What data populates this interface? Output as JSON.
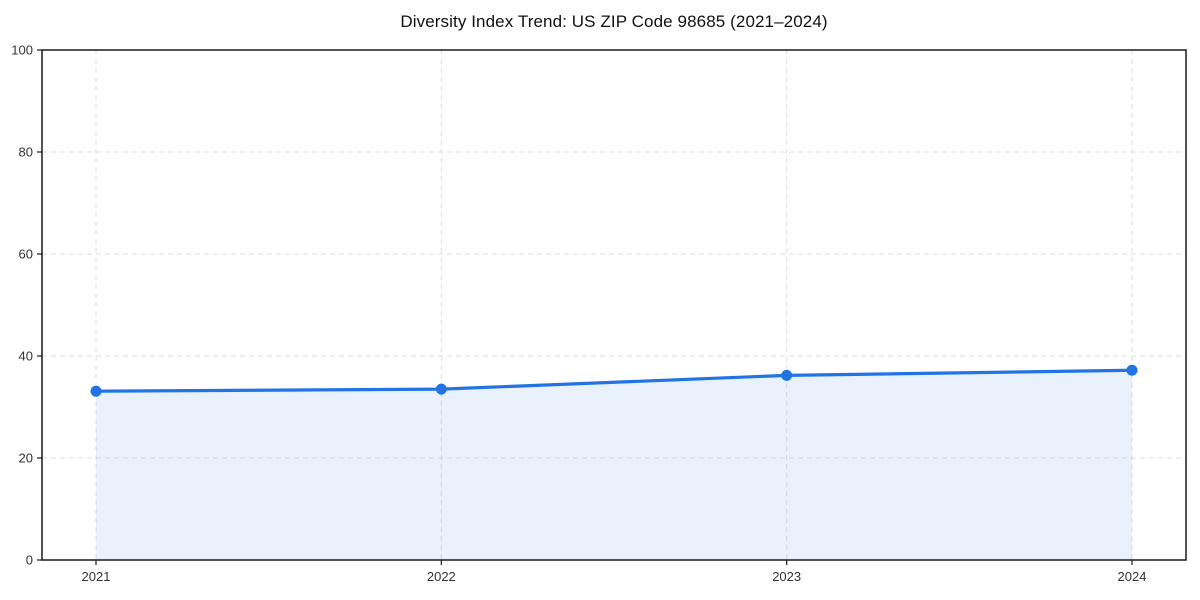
{
  "chart_data": {
    "type": "area",
    "title": "Diversity Index Trend: US ZIP Code 98685 (2021–2024)",
    "categories": [
      "2021",
      "2022",
      "2023",
      "2024"
    ],
    "series": [
      {
        "name": "Diversity Index",
        "values": [
          33.1,
          33.5,
          36.2,
          37.2
        ]
      }
    ],
    "xlabel": "",
    "ylabel": "",
    "ylim": [
      0,
      100
    ],
    "yticks": [
      0,
      20,
      40,
      60,
      80,
      100
    ],
    "grid": "dashed",
    "legend": "none",
    "colors": {
      "line": "#2273e3",
      "marker": "#2273e3",
      "area_fill": "#2273e3",
      "area_fill_opacity": 0.1,
      "gridline": "#dedede",
      "spine": "#1a1a1a",
      "tick_label": "#333333",
      "title": "#111111"
    }
  }
}
